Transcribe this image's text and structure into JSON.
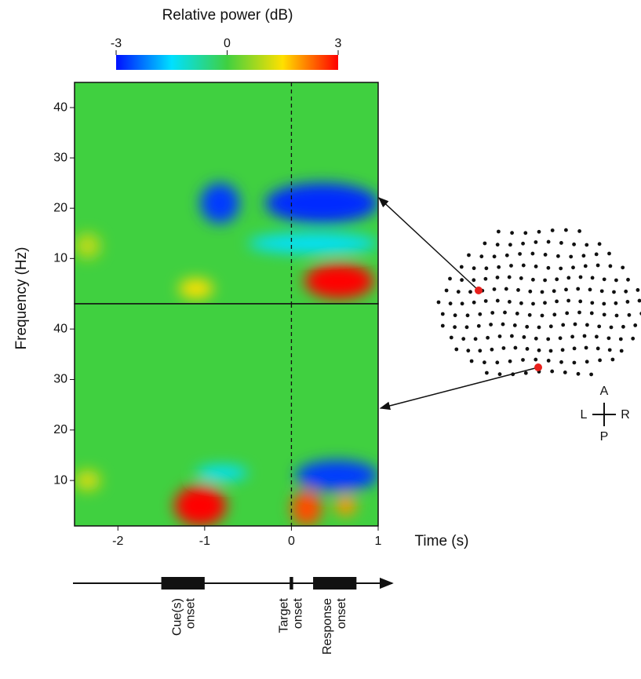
{
  "chart_data": [
    {
      "type": "heatmap",
      "ylabel": "Frequency (Hz)",
      "xlim": [
        -2.5,
        1
      ],
      "ylim": [
        1,
        45
      ],
      "yticks": [
        10,
        20,
        30,
        40
      ],
      "vline": 0,
      "blobs": [
        {
          "x": [
            -1.05,
            -0.6
          ],
          "y": [
            17,
            25
          ],
          "value": -2.7
        },
        {
          "x": [
            -0.3,
            1.0
          ],
          "y": [
            17,
            25
          ],
          "value": -2.8
        },
        {
          "x": [
            -0.5,
            1.0
          ],
          "y": [
            11,
            15
          ],
          "value": -1.5
        },
        {
          "x": [
            0.15,
            0.95
          ],
          "y": [
            2,
            9
          ],
          "value": 3
        },
        {
          "x": [
            -1.3,
            -0.9
          ],
          "y": [
            2,
            6
          ],
          "value": 1.5
        },
        {
          "x": [
            -2.5,
            -2.2
          ],
          "y": [
            10,
            15
          ],
          "value": 1
        }
      ]
    },
    {
      "type": "heatmap",
      "xlabel": "Time (s)",
      "xlim": [
        -2.5,
        1
      ],
      "ylim": [
        1,
        45
      ],
      "yticks": [
        10,
        20,
        30,
        40
      ],
      "xticks": [
        -2,
        -1,
        0,
        1
      ],
      "vline": 0,
      "blobs": [
        {
          "x": [
            -1.35,
            -0.75
          ],
          "y": [
            1,
            9
          ],
          "value": 3
        },
        {
          "x": [
            0.0,
            0.35
          ],
          "y": [
            1,
            8
          ],
          "value": 2.5
        },
        {
          "x": [
            0.5,
            0.75
          ],
          "y": [
            3,
            7
          ],
          "value": 2
        },
        {
          "x": [
            0.05,
            1.0
          ],
          "y": [
            8,
            14
          ],
          "value": -2.7
        },
        {
          "x": [
            -1.1,
            -0.5
          ],
          "y": [
            10,
            13
          ],
          "value": -1.5
        },
        {
          "x": [
            -2.5,
            -2.2
          ],
          "y": [
            8,
            12
          ],
          "value": 1.2
        }
      ]
    }
  ],
  "colorbar": {
    "title": "Relative power (dB)",
    "lim": [
      -3,
      3
    ],
    "ticks": [
      -3,
      0,
      3
    ]
  },
  "timeline": {
    "events": [
      {
        "label": [
          "Cue(s)",
          "onset"
        ],
        "start": -1.5,
        "end": -1
      },
      {
        "label": [
          "Target",
          "onset"
        ],
        "start": -0.02,
        "end": 0.02
      },
      {
        "label": [
          "Response",
          "onset"
        ],
        "start": 0.25,
        "end": 0.75
      }
    ]
  },
  "orientation": {
    "anterior": "A",
    "posterior": "P",
    "left": "L",
    "right": "R"
  }
}
